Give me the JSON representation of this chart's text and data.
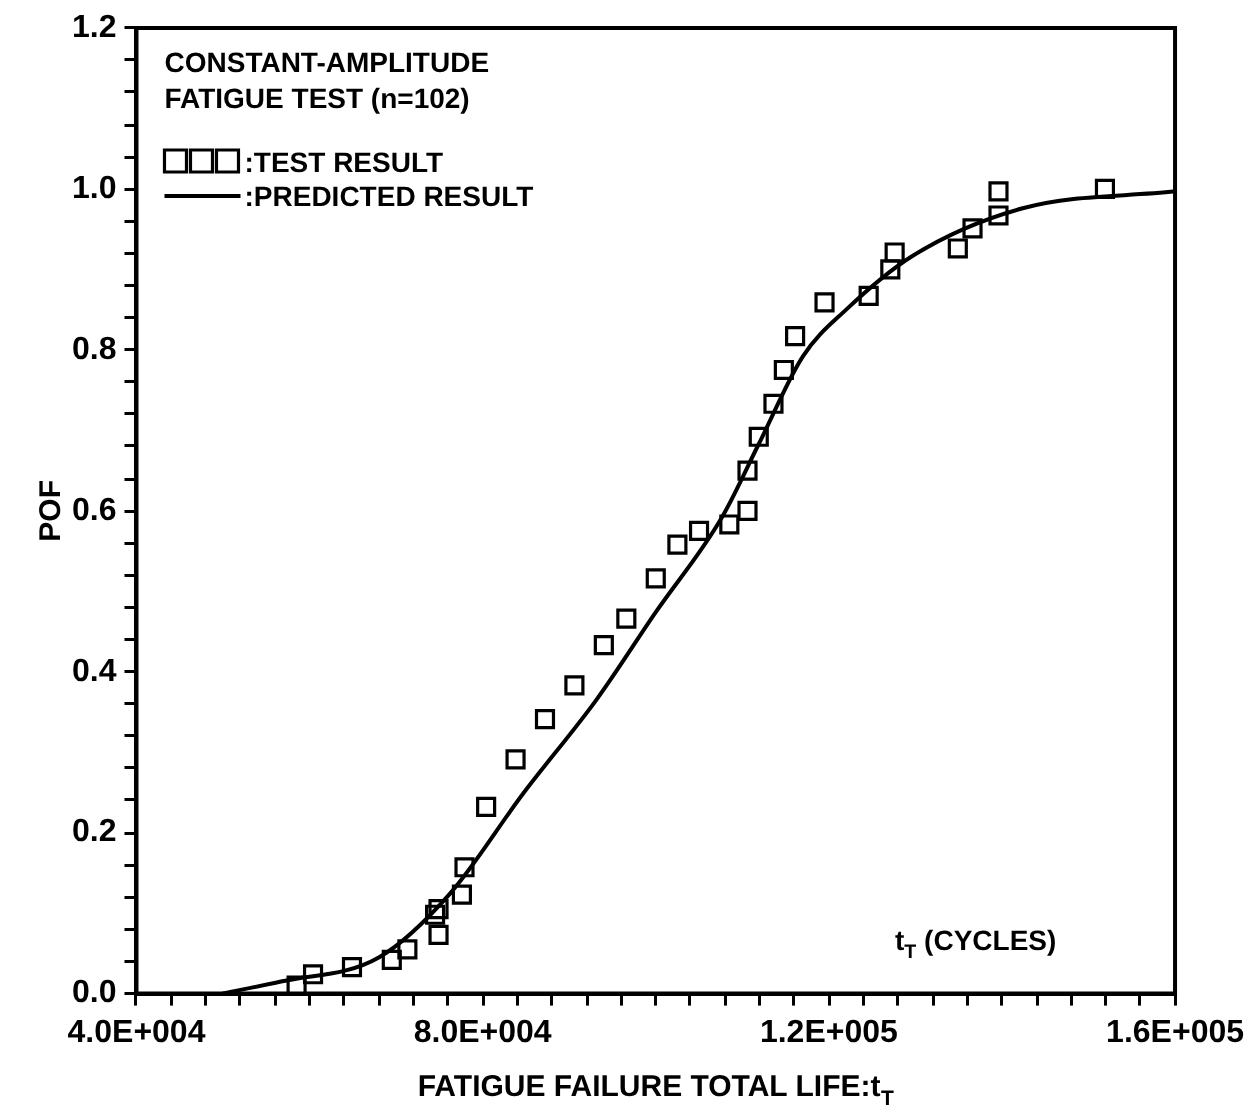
{
  "chart_data": {
    "type": "scatter",
    "xlabel": "FATIGUE FAILURE TOTAL LIFE:t$_{T}$",
    "ylabel": "POF",
    "annotations": [
      "CONSTANT-AMPLITUDE",
      "FATIGUE TEST (n=102)",
      "t$_{T}$ (CYCLES)"
    ],
    "xlim": [
      40000,
      160000
    ],
    "ylim": [
      0,
      1.2
    ],
    "xticks": [
      {
        "value": 40000,
        "label": "4.0E+004"
      },
      {
        "value": 44000,
        "label": null
      },
      {
        "value": 48000,
        "label": null
      },
      {
        "value": 52000,
        "label": null
      },
      {
        "value": 56000,
        "label": null
      },
      {
        "value": 60000,
        "label": null
      },
      {
        "value": 64000,
        "label": null
      },
      {
        "value": 68000,
        "label": null
      },
      {
        "value": 72000,
        "label": null
      },
      {
        "value": 76000,
        "label": null
      },
      {
        "value": 80000,
        "label": "8.0E+004"
      },
      {
        "value": 84000,
        "label": null
      },
      {
        "value": 88000,
        "label": null
      },
      {
        "value": 92000,
        "label": null
      },
      {
        "value": 96000,
        "label": null
      },
      {
        "value": 100000,
        "label": null
      },
      {
        "value": 104000,
        "label": null
      },
      {
        "value": 108000,
        "label": null
      },
      {
        "value": 112000,
        "label": null
      },
      {
        "value": 116000,
        "label": null
      },
      {
        "value": 120000,
        "label": "1.2E+005"
      },
      {
        "value": 124000,
        "label": null
      },
      {
        "value": 128000,
        "label": null
      },
      {
        "value": 132000,
        "label": null
      },
      {
        "value": 136000,
        "label": null
      },
      {
        "value": 140000,
        "label": null
      },
      {
        "value": 144000,
        "label": null
      },
      {
        "value": 148000,
        "label": null
      },
      {
        "value": 152000,
        "label": null
      },
      {
        "value": 156000,
        "label": null
      },
      {
        "value": 160000,
        "label": "1.6E+005"
      }
    ],
    "yticks": [
      {
        "value": 0,
        "label": "0.0"
      },
      {
        "value": 0.04,
        "label": null
      },
      {
        "value": 0.08,
        "label": null
      },
      {
        "value": 0.12,
        "label": null
      },
      {
        "value": 0.16,
        "label": null
      },
      {
        "value": 0.2,
        "label": "0.2"
      },
      {
        "value": 0.24,
        "label": null
      },
      {
        "value": 0.28,
        "label": null
      },
      {
        "value": 0.32,
        "label": null
      },
      {
        "value": 0.36,
        "label": null
      },
      {
        "value": 0.4,
        "label": "0.4"
      },
      {
        "value": 0.44,
        "label": null
      },
      {
        "value": 0.48,
        "label": null
      },
      {
        "value": 0.52,
        "label": null
      },
      {
        "value": 0.56,
        "label": null
      },
      {
        "value": 0.6,
        "label": "0.6"
      },
      {
        "value": 0.64,
        "label": null
      },
      {
        "value": 0.68,
        "label": null
      },
      {
        "value": 0.72,
        "label": null
      },
      {
        "value": 0.76,
        "label": null
      },
      {
        "value": 0.8,
        "label": "0.8"
      },
      {
        "value": 0.84,
        "label": null
      },
      {
        "value": 0.88,
        "label": null
      },
      {
        "value": 0.92,
        "label": null
      },
      {
        "value": 0.96,
        "label": null
      },
      {
        "value": 1.0,
        "label": "1.0"
      },
      {
        "value": 1.04,
        "label": null
      },
      {
        "value": 1.08,
        "label": null
      },
      {
        "value": 1.12,
        "label": null
      },
      {
        "value": 1.16,
        "label": null
      },
      {
        "value": 1.2,
        "label": "1.2"
      }
    ],
    "grid": false,
    "legend": "top left",
    "series": [
      {
        "name": ":TEST RESULT",
        "marker": "square",
        "color": "#000000",
        "x": [
          58500,
          60400,
          64900,
          69500,
          71300,
          74900,
          74900,
          77600,
          74500,
          77900,
          80400,
          83800,
          87200,
          90600,
          94000,
          96600,
          100000,
          102500,
          105000,
          108500,
          110600,
          110600,
          111900,
          113600,
          114800,
          116100,
          119500,
          124600,
          127100,
          127600,
          134900,
          136600,
          139600,
          139600,
          151900
        ],
        "values": [
          0.01,
          0.024,
          0.033,
          0.042,
          0.055,
          0.073,
          0.105,
          0.123,
          0.098,
          0.157,
          0.232,
          0.291,
          0.341,
          0.383,
          0.433,
          0.466,
          0.516,
          0.558,
          0.575,
          0.583,
          0.6,
          0.65,
          0.692,
          0.733,
          0.775,
          0.817,
          0.859,
          0.867,
          0.9,
          0.921,
          0.926,
          0.951,
          0.967,
          0.997,
          1.0
        ]
      },
      {
        "name": ":PREDICTED RESULT",
        "type": "line",
        "marker": "none",
        "line_style": "solid",
        "color": "#000000",
        "x": [
          49900,
          56700,
          68000,
          76200,
          84700,
          93200,
          100000,
          107600,
          111900,
          117000,
          122000,
          129700,
          142400,
          160000
        ],
        "values": [
          0.0,
          0.015,
          0.045,
          0.124,
          0.249,
          0.366,
          0.474,
          0.591,
          0.683,
          0.792,
          0.85,
          0.917,
          0.976,
          0.997
        ]
      }
    ]
  }
}
